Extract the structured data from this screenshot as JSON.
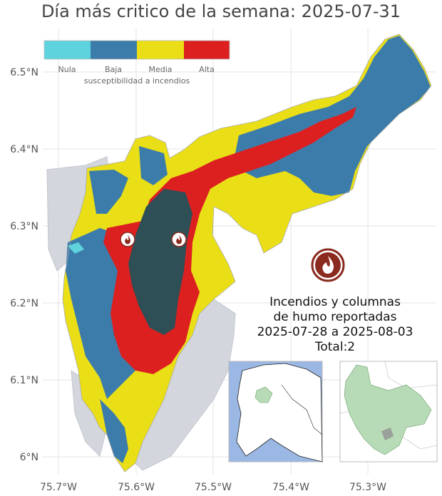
{
  "title": "Día más critico de la semana: 2025-07-31",
  "axes": {
    "y_ticks": [
      "6.5°N",
      "6.4°N",
      "6.3°N",
      "6.2°N",
      "6.1°N",
      "6°N"
    ],
    "x_ticks": [
      "75.7°W",
      "75.6°W",
      "75.5°W",
      "75.4°W",
      "75.3°W"
    ]
  },
  "legend": {
    "title": "susceptibilidad a incendios",
    "items": [
      {
        "label": "Nula",
        "color": "#5fd3dd"
      },
      {
        "label": "Baja",
        "color": "#3c7caa"
      },
      {
        "label": "Media",
        "color": "#eadf16"
      },
      {
        "label": "Alta",
        "color": "#dc2020"
      }
    ]
  },
  "colors": {
    "outside_region": "#d3d6dc",
    "core": "#2d4f55",
    "fire_icon": "#8b2a1e",
    "inset_sea": "#9bb7e3",
    "inset_land": "#b7dbb6"
  },
  "caption": {
    "line1": "Incendios y columnas",
    "line2": "de humo reportadas",
    "line3": "2025-07-28 a 2025-08-03",
    "line4": "Total:2"
  },
  "fires": {
    "count": 2
  },
  "icons": {
    "fire": "fire-icon"
  }
}
